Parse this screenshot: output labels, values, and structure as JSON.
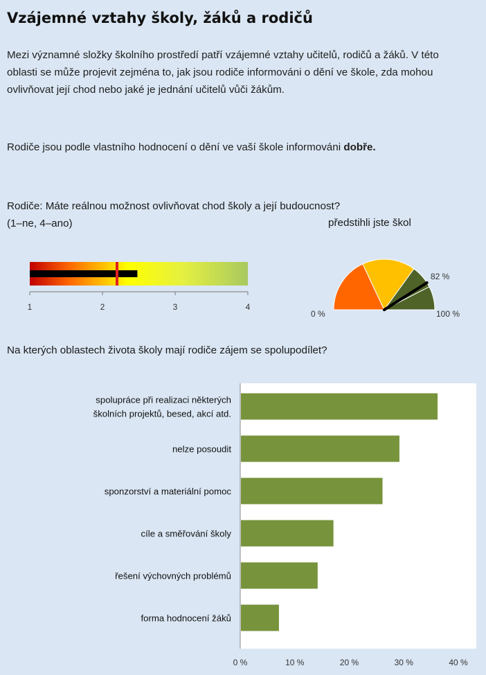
{
  "title": "Vzájemné vztahy školy, žáků a rodičů",
  "intro": "Mezi významné složky školního prostředí patří vzájemné vztahy učitelů, rodičů a žáků. V této oblasti se může projevit zejména to, jak jsou rodiče informováni o dění ve škole, zda mohou ovlivňovat její chod nebo jaké je jednání učitelů vůči žákům.",
  "info_text": "Rodiče jsou podle vlastního hodnocení o dění ve vaší škole informováni",
  "info_value": "dobře.",
  "question1": "Rodiče: Máte reálnou možnost ovlivňovat chod školy a její budoucnost?",
  "question1_scale": "(1–ne, 4–ano)",
  "gauge_caption": "předstihli jste škol",
  "question2": "Na kterých oblastech života školy mají rodiče zájem se spolupodílet?",
  "colors": {
    "bar_green": "#77933c",
    "gauge_orange": "#ff6600",
    "gauge_yellow": "#ffc000",
    "gauge_dark": "#4f6228",
    "marker_red": "#e02020"
  },
  "chart_data": [
    {
      "type": "bullet",
      "scale": [
        1,
        4
      ],
      "ticks": [
        "1",
        "2",
        "3",
        "4"
      ],
      "value": 2.48,
      "marker": 2.2
    },
    {
      "type": "gauge",
      "value_percent": 82,
      "labels": {
        "min": "0 %",
        "value": "82 %",
        "max": "100 %"
      }
    },
    {
      "type": "bar",
      "orientation": "horizontal",
      "categories": [
        [
          "spolupráce při realizaci některých",
          "školních projektů, besed, akcí atd."
        ],
        [
          "nelze posoudit"
        ],
        [
          "sponzorství a materiální pomoc"
        ],
        [
          "cíle a směřování školy"
        ],
        [
          "řešení výchovných problémů"
        ],
        [
          "forma hodnocení žáků"
        ]
      ],
      "values": [
        36.2,
        29.2,
        26.1,
        17.1,
        14.2,
        7.1
      ],
      "xlim": [
        0,
        40
      ],
      "x_ticks": [
        "0 %",
        "10 %",
        "20 %",
        "30 %",
        "40 %"
      ]
    }
  ]
}
